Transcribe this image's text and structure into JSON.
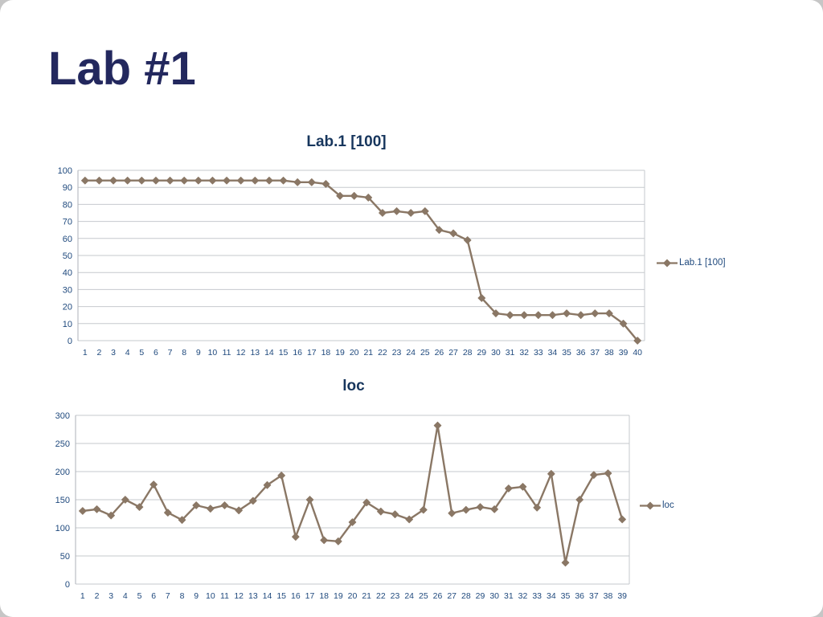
{
  "slide_title": "Lab #1",
  "series_color": "#8a7765",
  "grid_color": "#c6c9ce",
  "tick_label_color": "#1F497D",
  "title_color": "#17365D",
  "chart_data": [
    {
      "type": "line",
      "title": "Lab.1 [100]",
      "legend": "Lab.1 [100]",
      "legend_position": "right",
      "grid": true,
      "color": "#8a7765",
      "marker": "diamond",
      "xlabel": "",
      "ylabel": "",
      "ylim": [
        0,
        100
      ],
      "ytick": 10,
      "categories": [
        "1",
        "2",
        "3",
        "4",
        "5",
        "6",
        "7",
        "8",
        "9",
        "10",
        "11",
        "12",
        "13",
        "14",
        "15",
        "16",
        "17",
        "18",
        "19",
        "20",
        "21",
        "22",
        "23",
        "24",
        "25",
        "26",
        "27",
        "28",
        "29",
        "30",
        "31",
        "32",
        "33",
        "34",
        "35",
        "36",
        "37",
        "38",
        "39",
        "40"
      ],
      "values": [
        94,
        94,
        94,
        94,
        94,
        94,
        94,
        94,
        94,
        94,
        94,
        94,
        94,
        94,
        94,
        93,
        93,
        92,
        85,
        85,
        84,
        75,
        76,
        75,
        76,
        65,
        63,
        59,
        25,
        16,
        15,
        15,
        15,
        15,
        16,
        15,
        16,
        16,
        10,
        0
      ]
    },
    {
      "type": "line",
      "title": "loc",
      "legend": "loc",
      "legend_position": "right",
      "grid": true,
      "color": "#8a7765",
      "marker": "diamond",
      "xlabel": "",
      "ylabel": "",
      "ylim": [
        0,
        300
      ],
      "ytick": 50,
      "categories": [
        "1",
        "2",
        "3",
        "4",
        "5",
        "6",
        "7",
        "8",
        "9",
        "10",
        "11",
        "12",
        "13",
        "14",
        "15",
        "16",
        "17",
        "18",
        "19",
        "20",
        "21",
        "22",
        "23",
        "24",
        "25",
        "26",
        "27",
        "28",
        "29",
        "30",
        "31",
        "32",
        "33",
        "34",
        "35",
        "36",
        "37",
        "38",
        "39"
      ],
      "values": [
        130,
        133,
        122,
        150,
        137,
        177,
        127,
        114,
        140,
        134,
        140,
        131,
        148,
        176,
        193,
        84,
        150,
        78,
        76,
        110,
        145,
        129,
        124,
        115,
        132,
        282,
        126,
        132,
        137,
        133,
        170,
        173,
        136,
        196,
        38,
        150,
        194,
        197,
        115
      ]
    }
  ]
}
